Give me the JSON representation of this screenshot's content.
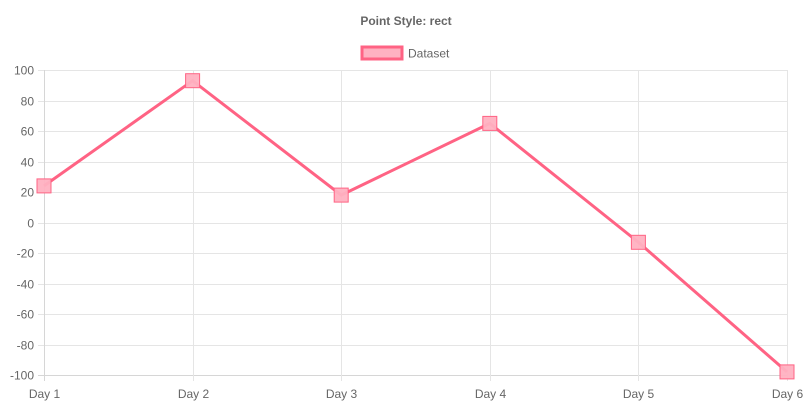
{
  "chart_data": {
    "type": "line",
    "title": "Point Style: rect",
    "point_style": "rect",
    "categories": [
      "Day 1",
      "Day 2",
      "Day 3",
      "Day 4",
      "Day 5",
      "Day 6"
    ],
    "series": [
      {
        "name": "Dataset",
        "values": [
          24,
          93,
          18,
          65,
          -13,
          -98
        ],
        "border_color": "#ff6384",
        "background_color": "#ffb1c1"
      }
    ],
    "ylim": [
      -100,
      100
    ],
    "y_ticks": [
      "100",
      "80",
      "60",
      "40",
      "20",
      "0",
      "-20",
      "-40",
      "-60",
      "-80",
      "-100"
    ],
    "y_tick_values": [
      100,
      80,
      60,
      40,
      20,
      0,
      -20,
      -40,
      -60,
      -80,
      -100
    ],
    "legend_position": "top",
    "grid": true,
    "colors": {
      "grid": "#e5e5e5",
      "axis": "#d6d6d6",
      "text": "#666666"
    }
  }
}
